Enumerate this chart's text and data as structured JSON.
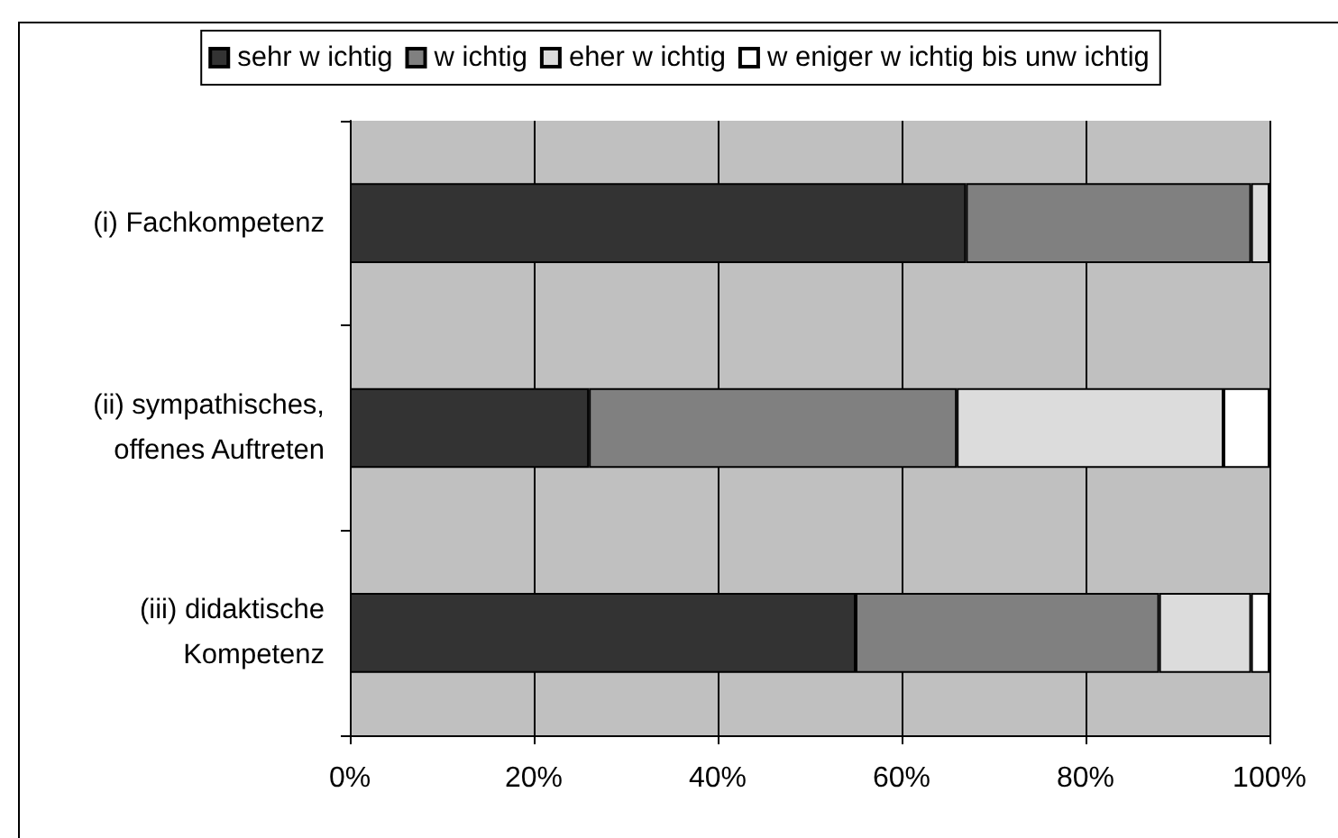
{
  "chart_data": {
    "type": "bar",
    "orientation": "horizontal",
    "stacked": true,
    "categories": [
      "(i) Fachkompetenz",
      "(ii) sympathisches,\noffenes Auftreten",
      "(iii) didaktische\nKompetenz"
    ],
    "series": [
      {
        "name": "sehr w ichtig",
        "color": "#333333",
        "values": [
          67,
          26,
          55
        ]
      },
      {
        "name": "w ichtig",
        "color": "#808080",
        "values": [
          31,
          40,
          33
        ]
      },
      {
        "name": "eher w ichtig",
        "color": "#dcdcdc",
        "values": [
          2,
          29,
          10
        ]
      },
      {
        "name": "w eniger w ichtig bis unw ichtig",
        "color": "#ffffff",
        "values": [
          0,
          5,
          2
        ]
      }
    ],
    "xlim": [
      0,
      100
    ],
    "xticks": [
      {
        "value": 0,
        "label": "0%"
      },
      {
        "value": 20,
        "label": "20%"
      },
      {
        "value": 40,
        "label": "40%"
      },
      {
        "value": 60,
        "label": "60%"
      },
      {
        "value": 80,
        "label": "80%"
      },
      {
        "value": 100,
        "label": "100%"
      }
    ],
    "grid": "x",
    "legend": "top"
  }
}
